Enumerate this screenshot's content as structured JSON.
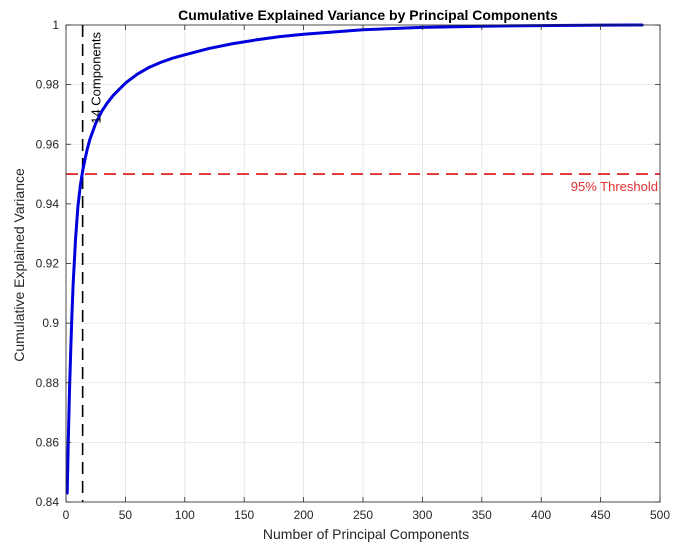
{
  "chart_data": {
    "type": "line",
    "title": "Cumulative Explained Variance by Principal Components",
    "xlabel": "Number of Principal Components",
    "ylabel": "Cumulative Explained Variance",
    "xlim": [
      0,
      500
    ],
    "ylim": [
      0.84,
      1.0
    ],
    "grid": true,
    "xticks": [
      0,
      50,
      100,
      150,
      200,
      250,
      300,
      350,
      400,
      450,
      500
    ],
    "xtick_labels": [
      "0",
      "50",
      "100",
      "150",
      "200",
      "250",
      "300",
      "350",
      "400",
      "450",
      "500"
    ],
    "yticks": [
      0.84,
      0.86,
      0.88,
      0.9,
      0.92,
      0.94,
      0.96,
      0.98,
      1.0
    ],
    "ytick_labels": [
      "0.84",
      "0.86",
      "0.88",
      "0.9",
      "0.92",
      "0.94",
      "0.96",
      "0.98",
      "1"
    ],
    "series": [
      {
        "color": "#0000dd",
        "x": [
          1,
          2,
          3,
          4,
          5,
          6,
          8,
          10,
          12,
          14,
          16,
          18,
          20,
          25,
          30,
          35,
          40,
          50,
          60,
          70,
          80,
          90,
          100,
          120,
          140,
          160,
          180,
          200,
          250,
          300,
          350,
          400,
          450,
          485
        ],
        "y": [
          0.843,
          0.862,
          0.878,
          0.891,
          0.903,
          0.913,
          0.928,
          0.939,
          0.946,
          0.951,
          0.955,
          0.9585,
          0.9615,
          0.967,
          0.971,
          0.974,
          0.9765,
          0.9805,
          0.9835,
          0.9858,
          0.9875,
          0.9889,
          0.99,
          0.9921,
          0.9937,
          0.995,
          0.9961,
          0.9969,
          0.9984,
          0.9992,
          0.9996,
          0.9998,
          0.99995,
          1.0
        ]
      }
    ],
    "reference_lines": [
      {
        "orientation": "horizontal",
        "value": 0.95,
        "style": "dashed",
        "color": "#e03030",
        "label": "95% Threshold"
      },
      {
        "orientation": "vertical",
        "value": 14,
        "style": "dashed",
        "color": "#000000",
        "label": "14 Components"
      }
    ]
  }
}
